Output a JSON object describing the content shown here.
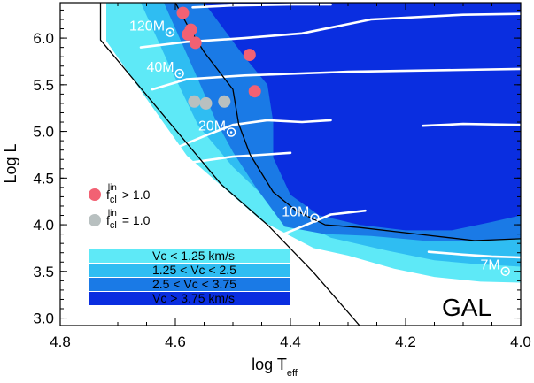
{
  "chart_data": {
    "type": "scatter",
    "xlabel_main": "log T",
    "xlabel_sub": "eff",
    "ylabel": "Log L",
    "xlim": [
      4.8,
      4.0
    ],
    "ylim": [
      2.92,
      6.38
    ],
    "x_ticks": [
      {
        "value": 4.8,
        "label": "4.8"
      },
      {
        "value": 4.6,
        "label": "4.6"
      },
      {
        "value": 4.4,
        "label": "4.4"
      },
      {
        "value": 4.2,
        "label": "4.2"
      },
      {
        "value": 4.0,
        "label": "4.0"
      }
    ],
    "y_ticks": [
      {
        "value": 3.0,
        "label": "3.0"
      },
      {
        "value": 3.5,
        "label": "3.5"
      },
      {
        "value": 4.0,
        "label": "4.0"
      },
      {
        "value": 4.5,
        "label": "4.5"
      },
      {
        "value": 5.0,
        "label": "5.0"
      },
      {
        "value": 5.5,
        "label": "5.5"
      },
      {
        "value": 6.0,
        "label": "6.0"
      }
    ],
    "panel_label": "GAL",
    "region_colors": [
      "#5ee9f7",
      "#2fbdf2",
      "#1a7ae6",
      "#0a2ee0"
    ],
    "velocity_legend": [
      {
        "label": "Vc < 1.25 km/s",
        "color": "#5ee9f7"
      },
      {
        "label": "1.25 < Vc < 2.5",
        "color": "#2fbdf2"
      },
      {
        "label": "2.5 < Vc < 3.75",
        "color": "#1a7ae6"
      },
      {
        "label": " Vc > 3.75 km/s",
        "color": "#0a2ee0"
      }
    ],
    "marker_legend": [
      {
        "f": "f",
        "sub": "cl",
        "sup": "lin",
        "rel": "> 1.0",
        "color": "#f26173"
      },
      {
        "f": "f",
        "sub": "cl",
        "sup": "lin",
        "rel": "= 1.0",
        "color": "#b8c0c0"
      }
    ],
    "mass_labels": [
      {
        "text": "120M",
        "x": 4.68,
        "y": 6.08
      },
      {
        "text": "40M",
        "x": 4.65,
        "y": 5.64
      },
      {
        "text": "20M",
        "x": 4.56,
        "y": 5.01
      },
      {
        "text": "10M",
        "x": 4.415,
        "y": 4.09
      },
      {
        "text": "7M",
        "x": 4.07,
        "y": 3.52
      }
    ],
    "series": [
      {
        "name": "f_cl^lin > 1.0",
        "color": "#f26173",
        "points": [
          [
            4.587,
            6.27
          ],
          [
            4.573,
            6.09
          ],
          [
            4.578,
            6.04
          ],
          [
            4.565,
            5.95
          ],
          [
            4.471,
            5.82
          ],
          [
            4.462,
            5.43
          ]
        ]
      },
      {
        "name": "f_cl^lin = 1.0",
        "color": "#b8c0c0",
        "points": [
          [
            4.567,
            5.32
          ],
          [
            4.547,
            5.3
          ],
          [
            4.515,
            5.32
          ]
        ]
      }
    ],
    "regions": {
      "outer": [
        [
          4.72,
          6.38
        ],
        [
          4.0,
          6.38
        ],
        [
          4.0,
          3.38
        ],
        [
          4.07,
          3.39
        ],
        [
          4.15,
          3.44
        ],
        [
          4.22,
          3.53
        ],
        [
          4.3,
          3.67
        ],
        [
          4.36,
          3.75
        ],
        [
          4.45,
          4.04
        ],
        [
          4.58,
          4.74
        ],
        [
          4.65,
          5.35
        ],
        [
          4.72,
          5.97
        ]
      ],
      "mid": [
        [
          4.66,
          6.38
        ],
        [
          4.0,
          6.38
        ],
        [
          4.0,
          3.55
        ],
        [
          4.08,
          3.58
        ],
        [
          4.15,
          3.62
        ],
        [
          4.23,
          3.72
        ],
        [
          4.33,
          3.86
        ],
        [
          4.42,
          4.15
        ],
        [
          4.5,
          4.62
        ],
        [
          4.56,
          5.06
        ],
        [
          4.61,
          5.7
        ]
      ],
      "inner": [
        [
          4.62,
          6.38
        ],
        [
          4.0,
          6.38
        ],
        [
          4.0,
          3.85
        ],
        [
          4.08,
          3.82
        ],
        [
          4.17,
          3.83
        ],
        [
          4.26,
          3.88
        ],
        [
          4.34,
          3.9
        ],
        [
          4.41,
          3.98
        ],
        [
          4.46,
          4.4
        ],
        [
          4.5,
          4.78
        ],
        [
          4.53,
          5.12
        ],
        [
          4.56,
          5.55
        ]
      ],
      "core": [
        [
          4.55,
          6.38
        ],
        [
          4.0,
          6.38
        ],
        [
          4.0,
          4.1
        ],
        [
          4.05,
          4.03
        ],
        [
          4.12,
          3.94
        ],
        [
          4.2,
          3.94
        ],
        [
          4.28,
          4.0
        ],
        [
          4.35,
          4.1
        ],
        [
          4.4,
          4.32
        ],
        [
          4.43,
          4.72
        ],
        [
          4.43,
          5.1
        ],
        [
          4.44,
          5.5
        ],
        [
          4.48,
          5.8
        ]
      ]
    },
    "boundary_lines": [
      [
        [
          4.6,
          6.38
        ],
        [
          4.58,
          6.15
        ],
        [
          4.55,
          5.85
        ],
        [
          4.5,
          5.45
        ],
        [
          4.49,
          5.08
        ],
        [
          4.47,
          4.75
        ],
        [
          4.43,
          4.35
        ],
        [
          4.39,
          4.15
        ],
        [
          4.34,
          4.0
        ],
        [
          4.28,
          3.97
        ],
        [
          4.18,
          3.9
        ],
        [
          4.08,
          3.83
        ],
        [
          4.0,
          3.85
        ]
      ],
      [
        [
          4.73,
          6.38
        ],
        [
          4.73,
          5.98
        ],
        [
          4.52,
          4.43
        ],
        [
          4.44,
          4.0
        ],
        [
          4.36,
          3.49
        ],
        [
          4.28,
          2.92
        ]
      ]
    ],
    "tracks": [
      [
        [
          4.57,
          6.33
        ],
        [
          4.5,
          6.35
        ],
        [
          4.4,
          6.36
        ],
        [
          4.33,
          6.36
        ]
      ],
      [
        [
          4.66,
          5.9
        ],
        [
          4.58,
          5.96
        ],
        [
          4.48,
          6.0
        ],
        [
          4.38,
          6.05
        ],
        [
          4.26,
          6.2
        ],
        [
          4.1,
          6.25
        ],
        [
          4.0,
          6.26
        ]
      ],
      [
        [
          4.64,
          5.45
        ],
        [
          4.58,
          5.56
        ],
        [
          4.48,
          5.6
        ],
        [
          4.3,
          5.64
        ],
        [
          4.1,
          5.66
        ],
        [
          4.0,
          5.67
        ]
      ],
      [
        [
          4.6,
          4.82
        ],
        [
          4.55,
          4.95
        ],
        [
          4.5,
          5.07
        ],
        [
          4.44,
          5.12
        ],
        [
          4.38,
          5.1
        ],
        [
          4.33,
          5.12
        ]
      ],
      [
        [
          4.17,
          5.06
        ],
        [
          4.1,
          5.08
        ],
        [
          4.0,
          5.07
        ]
      ],
      [
        [
          4.57,
          4.67
        ],
        [
          4.5,
          4.73
        ],
        [
          4.45,
          4.75
        ],
        [
          4.4,
          4.77
        ]
      ],
      [
        [
          4.44,
          3.83
        ],
        [
          4.38,
          3.98
        ],
        [
          4.33,
          4.11
        ],
        [
          4.27,
          4.15
        ]
      ],
      [
        [
          4.16,
          3.71
        ],
        [
          4.1,
          3.68
        ],
        [
          4.05,
          3.66
        ],
        [
          4.0,
          3.65
        ]
      ]
    ]
  }
}
